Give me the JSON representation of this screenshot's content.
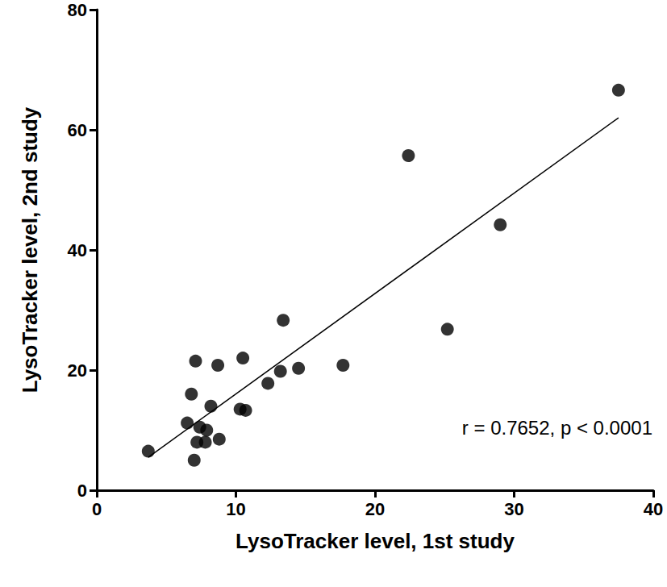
{
  "chart_data": {
    "type": "scatter",
    "x_label": "LysoTracker level, 1st study",
    "y_label": "LysoTracker level, 2nd study",
    "annotation": "r = 0.7652, p < 0.0001",
    "x": [
      3.7,
      7.0,
      6.5,
      6.8,
      7.1,
      7.2,
      7.4,
      7.8,
      7.9,
      8.2,
      8.7,
      8.8,
      10.3,
      10.5,
      10.7,
      12.3,
      13.2,
      13.4,
      14.5,
      17.7,
      22.4,
      25.2,
      29.0,
      37.5
    ],
    "values": [
      6.5,
      5.0,
      11.2,
      16.0,
      21.5,
      8.0,
      10.5,
      8.0,
      10.0,
      14.0,
      20.8,
      8.5,
      13.5,
      22.0,
      13.3,
      17.8,
      19.8,
      28.3,
      20.3,
      20.8,
      55.7,
      26.8,
      44.2,
      66.6
    ],
    "color": "#000000",
    "marker": "circle",
    "fit_line": {
      "x": [
        3.7,
        37.5
      ],
      "y": [
        5.5,
        62.0
      ]
    },
    "xlim": [
      0,
      40
    ],
    "xticks": [
      0,
      10,
      20,
      30,
      40
    ],
    "ylim": [
      0,
      80
    ],
    "yticks": [
      0,
      20,
      40,
      60,
      80
    ],
    "grid": false
  }
}
